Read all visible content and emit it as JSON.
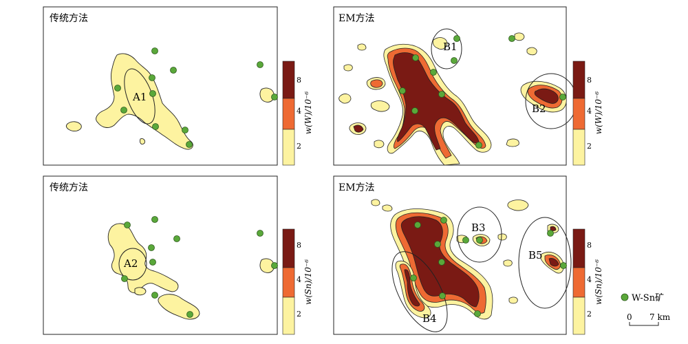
{
  "panels": [
    {
      "title": "传统方法",
      "legend_label": "w(W)/10⁻⁶",
      "ellipses": [
        "A1"
      ]
    },
    {
      "title": "EM方法",
      "legend_label": "w(W)/10⁻⁶",
      "ellipses": [
        "B1",
        "B2"
      ]
    },
    {
      "title": "传统方法",
      "legend_label": "w(Sn)/10⁻⁶",
      "ellipses": [
        "A2"
      ]
    },
    {
      "title": "EM方法",
      "legend_label": "w(Sn)/10⁻⁶",
      "ellipses": [
        "B3",
        "B4",
        "B5"
      ]
    }
  ],
  "colorbar": {
    "ticks": [
      "2",
      "4",
      "8"
    ],
    "colors": {
      "low": "#fdf3a0",
      "mid": "#ee6a33",
      "high": "#7a1a14"
    }
  },
  "legend": {
    "deposit_label": "W-Sn矿",
    "deposit_color": "#5aa83a"
  },
  "scale": {
    "start": "0",
    "end": "7 km"
  }
}
